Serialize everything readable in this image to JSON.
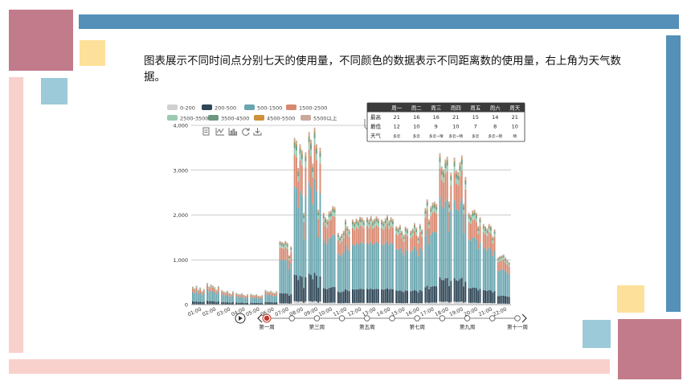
{
  "description": "图表展示不同时间点分别七天的使用量，不同颜色的数据表示不同距离数的使用量，右上角为天气数据。",
  "colors": {
    "deco_pink": "#c27b8a",
    "deco_blue": "#5490b8",
    "deco_yellow": "#fde19a",
    "deco_lightblue": "#9ccad9",
    "deco_lightpink": "#f8d0cc"
  },
  "chart_data": {
    "type": "bar",
    "stacked": true,
    "legend": [
      {
        "name": "0-200",
        "color": "#d0d0d0"
      },
      {
        "name": "200-500",
        "color": "#2e4656"
      },
      {
        "name": "500-1500",
        "color": "#6aa6b0"
      },
      {
        "name": "1500-2500",
        "color": "#d98870"
      },
      {
        "name": "2500-3500",
        "color": "#9acbb0"
      },
      {
        "name": "3500-4500",
        "color": "#6f9780"
      },
      {
        "name": "4500-5500",
        "color": "#d08f3a"
      },
      {
        "name": "5500以上",
        "color": "#c9a99b"
      }
    ],
    "ylim": [
      0,
      4000
    ],
    "yticks": [
      "4,000",
      "3,000",
      "2,000",
      "1,000",
      "0"
    ],
    "hours": [
      "01:00",
      "02:00",
      "03:00",
      "04:00",
      "05:00",
      "06:00",
      "07:00",
      "08:00",
      "09:00",
      "10:00",
      "11:00",
      "12:00",
      "13:00",
      "14:00",
      "15:00",
      "16:00",
      "17:00",
      "18:00",
      "19:00",
      "20:00",
      "21:00",
      "22:00"
    ],
    "days": [
      "周一",
      "周二",
      "周三",
      "周四",
      "周五",
      "周六",
      "周天"
    ],
    "hour_totals": [
      [
        400,
        360,
        420,
        330,
        380,
        300,
        350
      ],
      [
        480,
        400,
        450,
        420,
        390,
        330,
        410
      ],
      [
        320,
        300,
        280,
        310,
        260,
        240,
        300
      ],
      [
        260,
        240,
        230,
        250,
        220,
        200,
        230
      ],
      [
        240,
        220,
        210,
        230,
        200,
        190,
        210
      ],
      [
        330,
        300,
        290,
        310,
        280,
        260,
        300
      ],
      [
        1420,
        1400,
        1380,
        1420,
        1380,
        1100,
        1300
      ],
      [
        3720,
        3660,
        3050,
        3580,
        3450,
        2050,
        3400
      ],
      [
        3850,
        3680,
        3150,
        3950,
        3580,
        2120,
        3500
      ],
      [
        2050,
        1950,
        1900,
        2080,
        2100,
        2200,
        2180
      ],
      [
        1600,
        1520,
        1580,
        1650,
        1900,
        1750,
        1680
      ],
      [
        1900,
        1850,
        1920,
        1880,
        1960,
        1950,
        1890
      ],
      [
        1950,
        1900,
        1980,
        1880,
        1920,
        1970,
        1930
      ],
      [
        1900,
        1860,
        1930,
        2000,
        1880,
        1950,
        1910
      ],
      [
        1750,
        1720,
        1780,
        1650,
        1560,
        1740,
        1700
      ],
      [
        1650,
        1700,
        1820,
        1720,
        1520,
        1800,
        1680
      ],
      [
        2150,
        2350,
        1900,
        2200,
        2280,
        2300,
        2250
      ],
      [
        3380,
        3080,
        3020,
        3240,
        3300,
        2300,
        2950
      ],
      [
        3280,
        3000,
        2960,
        3180,
        3330,
        2250,
        2850
      ],
      [
        2050,
        2000,
        2100,
        2120,
        2050,
        1750,
        1950
      ],
      [
        1800,
        1750,
        1700,
        1800,
        1760,
        1520,
        1680
      ],
      [
        1050,
        1080,
        1100,
        1120,
        1050,
        1000,
        950
      ]
    ],
    "weather": {
      "headers": [
        "",
        "周一",
        "周二",
        "周三",
        "周四",
        "周五",
        "周六",
        "周天"
      ],
      "rows": [
        [
          "最高",
          "21",
          "16",
          "16",
          "21",
          "15",
          "14",
          "21"
        ],
        [
          "最低",
          "12",
          "10",
          "9",
          "10",
          "7",
          "8",
          "10"
        ],
        [
          "天气",
          "多云",
          "多云",
          "多云~晴",
          "多云~晴",
          "多云",
          "多云~阴",
          "晴"
        ]
      ]
    },
    "toolbox": [
      "data-view-icon",
      "line-chart-icon",
      "bar-chart-icon",
      "restore-icon",
      "save-image-icon"
    ],
    "timeline": {
      "labels": [
        "第一周",
        "第三周",
        "第五周",
        "第七周",
        "第九周",
        "第十一周"
      ],
      "points": 11,
      "current": 0
    }
  }
}
